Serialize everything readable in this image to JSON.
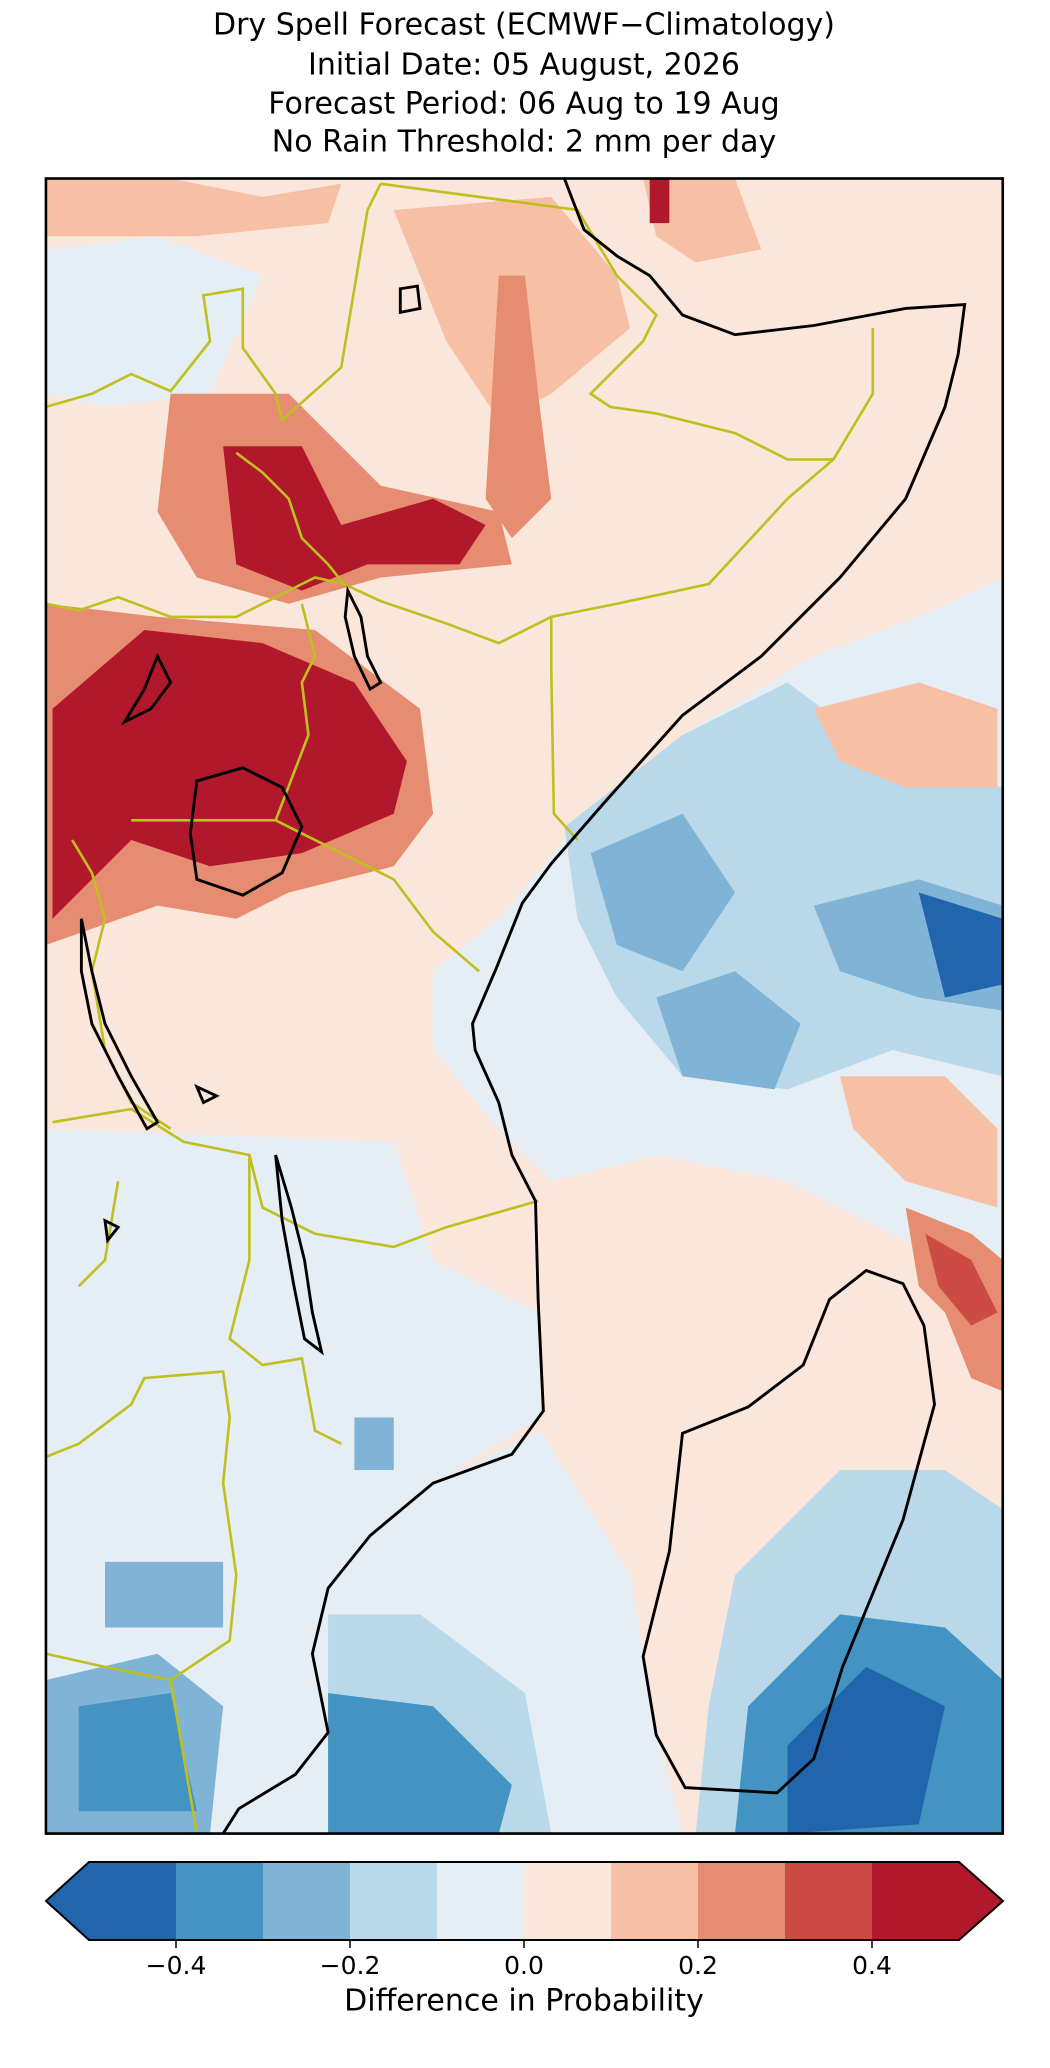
{
  "chart_data": {
    "type": "colorbar",
    "title": [
      "Dry Spell Forecast (ECMWF−Climatology)",
      "Initial Date: 05 August, 2026",
      "Forecast Period: 06 Aug to 19 Aug",
      "No Rain Threshold: 2 mm per day"
    ],
    "label": "Difference in Probability",
    "xlim": [
      -0.5,
      0.5
    ],
    "extend": "both",
    "colors": [
      "#2166ac",
      "#4393c3",
      "#7fb4d7",
      "#b9d8ea",
      "#e5eef4",
      "#fbe6dc",
      "#f7c0a5",
      "#e68c71",
      "#cc4c45",
      "#b2182b"
    ],
    "xticks": [
      {
        "value": -0.4,
        "label": "−0.4"
      },
      {
        "value": -0.2,
        "label": "−0.2"
      },
      {
        "value": 0,
        "label": "0.0"
      },
      0.2,
      0.4
    ]
  }
}
